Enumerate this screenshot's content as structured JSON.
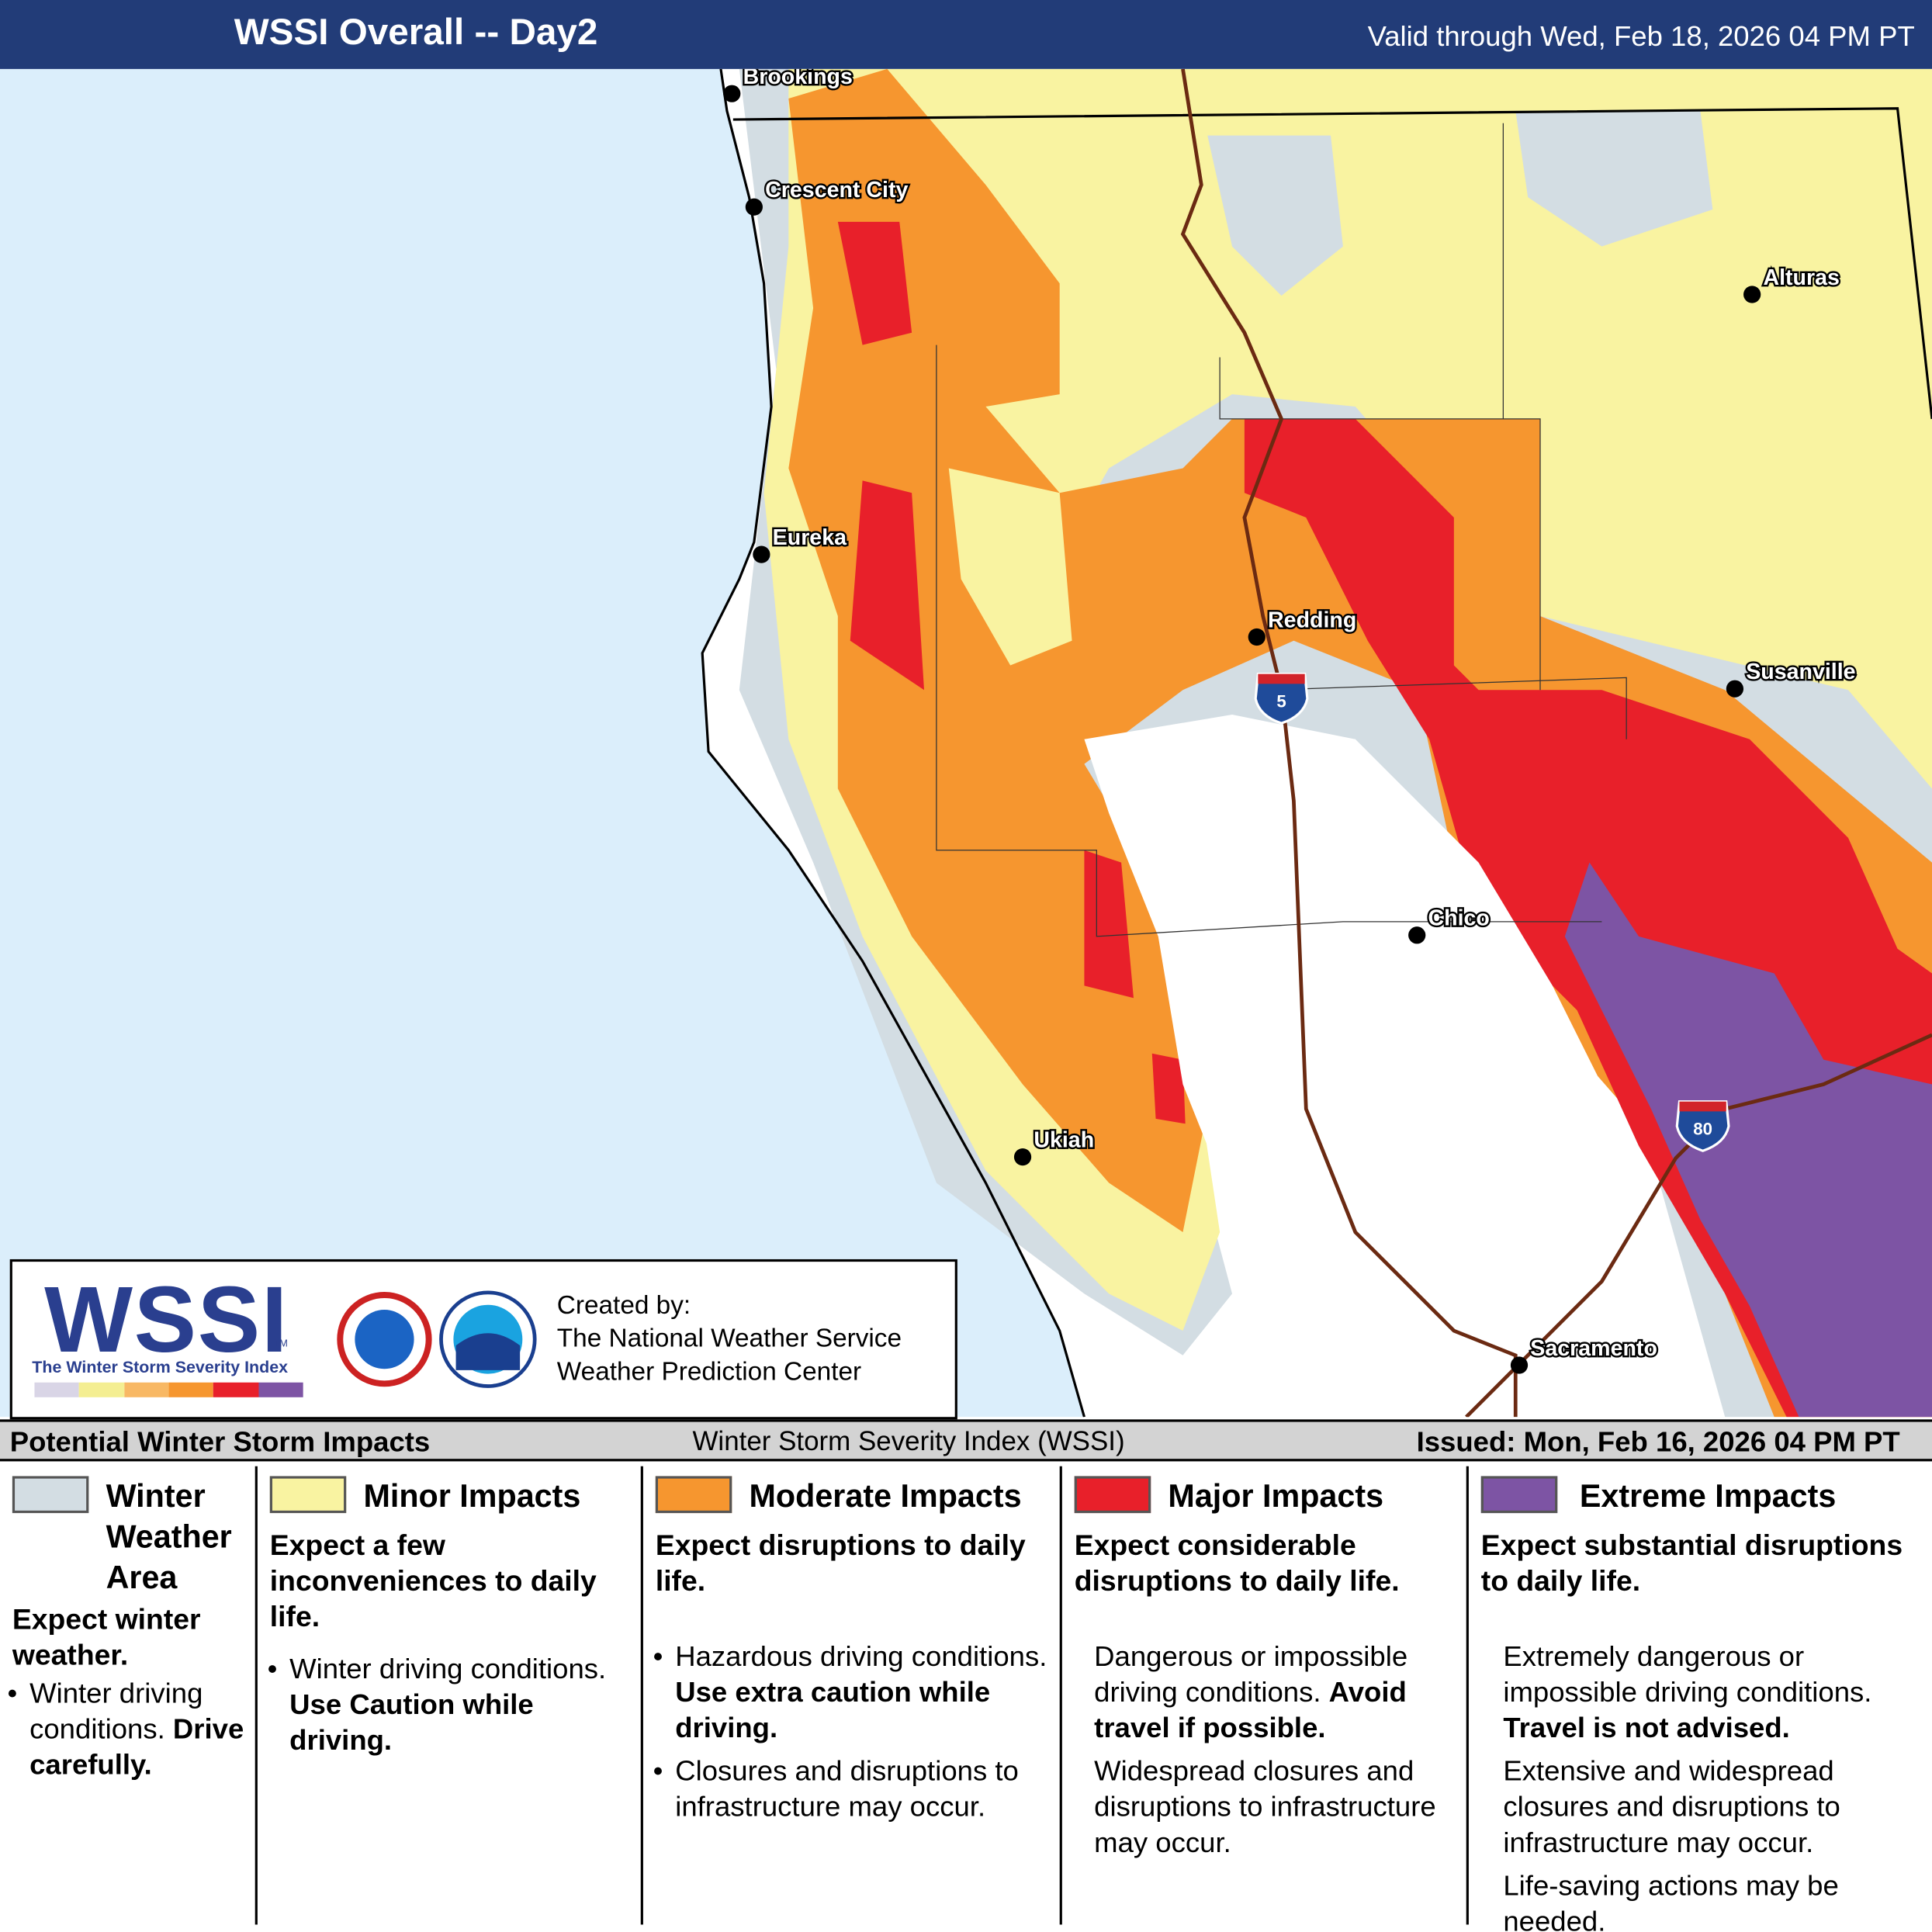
{
  "header": {
    "title": "WSSI Overall -- Day2",
    "valid": "Valid through Wed, Feb 18, 2026 04 PM PT"
  },
  "map": {
    "cities": [
      "Brookings",
      "Crescent City",
      "Alturas",
      "Eureka",
      "Redding",
      "Susanville",
      "Chico",
      "Ukiah",
      "Sacramento"
    ],
    "interstates": [
      "5",
      "80"
    ]
  },
  "logo": {
    "wssi": "WSSI",
    "tm": "TM",
    "subtitle": "The Winter Storm Severity Index",
    "credit": [
      "Created by:",
      "The National Weather Service",
      "Weather Prediction Center"
    ]
  },
  "legend": {
    "title": "Potential Winter Storm Impacts",
    "center": "Winter Storm Severity Index (WSSI)",
    "issued": "Issued: Mon, Feb 16, 2026 04 PM PT",
    "categories": [
      {
        "name": "Winter Weather Area",
        "color": "#d3dde3",
        "headline": "Expect winter weather.",
        "bullets": true,
        "items": [
          [
            {
              "t": "Winter driving conditions."
            },
            {
              "t": "Drive carefully.",
              "b": true
            }
          ]
        ]
      },
      {
        "name": "Minor Impacts",
        "color": "#f9f3a1",
        "headline": "Expect a few inconveniences to daily life.",
        "bullets": true,
        "items": [
          [
            {
              "t": "Winter driving conditions."
            },
            {
              "t": "Use Caution while driving.",
              "b": true
            }
          ]
        ]
      },
      {
        "name": "Moderate Impacts",
        "color": "#f6962f",
        "headline": "Expect disruptions to daily life.",
        "bullets": true,
        "items": [
          [
            {
              "t": "Hazardous driving conditions."
            },
            {
              "t": "Use extra caution while driving.",
              "b": true
            }
          ],
          [
            {
              "t": "Closures and disruptions to infrastructure may occur."
            }
          ]
        ]
      },
      {
        "name": "Major Impacts",
        "color": "#e8202a",
        "headline": "Expect considerable disruptions to daily life.",
        "bullets": false,
        "items": [
          [
            {
              "t": "Dangerous or impossible driving conditions."
            },
            {
              "t": "Avoid travel if possible.",
              "b": true
            }
          ],
          [
            {
              "t": "Widespread closures and disruptions to infrastructure may occur."
            }
          ]
        ]
      },
      {
        "name": "Extreme Impacts",
        "color": "#7d54a4",
        "headline": "Expect substantial disruptions to daily life.",
        "bullets": false,
        "items": [
          [
            {
              "t": "Extremely dangerous or impossible driving conditions."
            },
            {
              "t": "Travel is not advised.",
              "b": true
            }
          ],
          [
            {
              "t": "Extensive and widespread closures and disruptions to infrastructure may occur."
            }
          ],
          [
            {
              "t": "Life-saving actions may be needed."
            }
          ]
        ]
      }
    ]
  }
}
